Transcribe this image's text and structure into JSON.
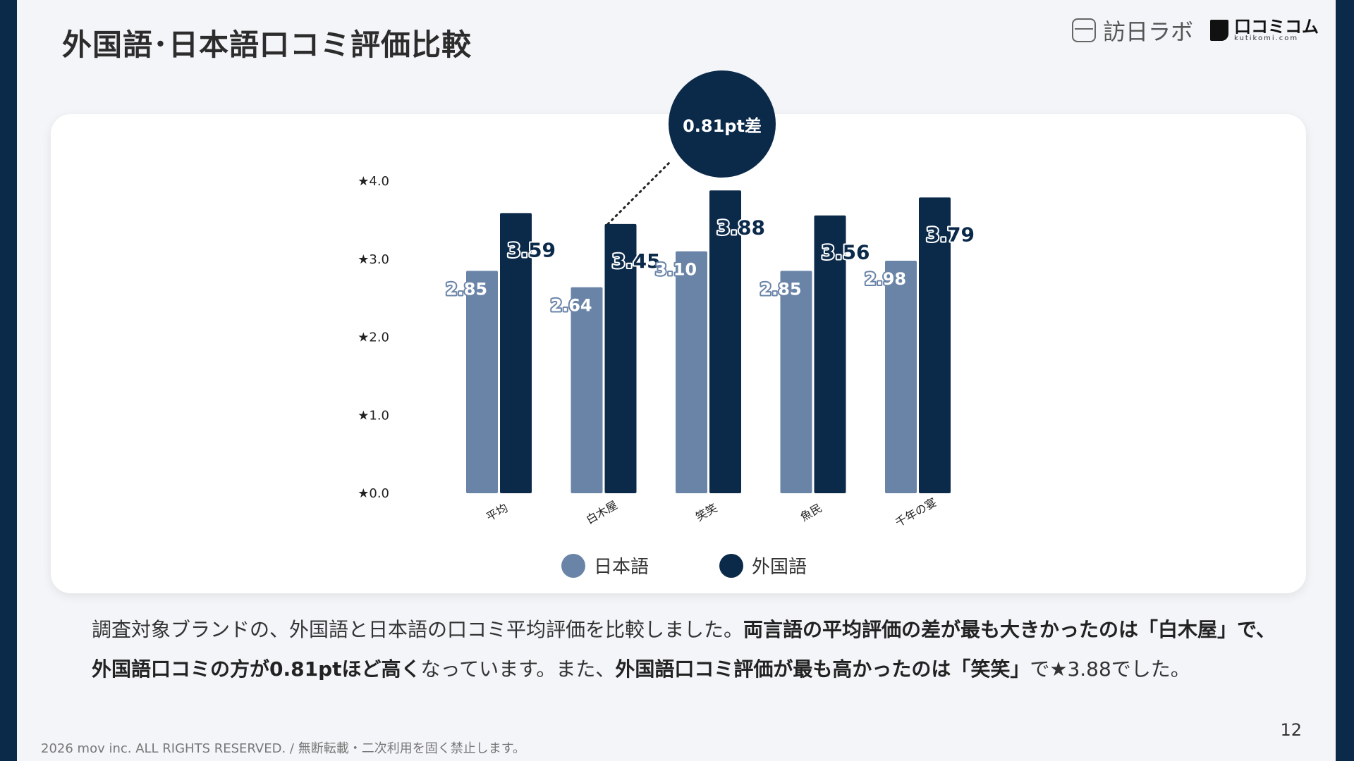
{
  "header": {
    "title": "外国語･日本語口コミ評価比較",
    "logo1_text": "訪日ラボ",
    "logo2_text": "口コミコム",
    "logo2_sub": "kutikomi.com"
  },
  "callout": {
    "text": "0.81pt差",
    "points_to_category": "白木屋"
  },
  "chart_data": {
    "type": "bar",
    "categories": [
      "平均",
      "白木屋",
      "笑笑",
      "魚民",
      "千年の宴"
    ],
    "series": [
      {
        "name": "日本語",
        "color": "#6a84a8",
        "values": [
          2.85,
          2.64,
          3.1,
          2.85,
          2.98
        ],
        "labels": [
          "2.85",
          "2.64",
          "3.10",
          "2.85",
          "2.98"
        ]
      },
      {
        "name": "外国語",
        "color": "#0b2a4a",
        "values": [
          3.59,
          3.45,
          3.88,
          3.56,
          3.79
        ],
        "labels": [
          "3.59",
          "3.45",
          "3.88",
          "3.56",
          "3.79"
        ]
      }
    ],
    "yticks": [
      "★0.0",
      "★1.0",
      "★2.0",
      "★3.0",
      "★4.0"
    ],
    "ylim": [
      0,
      4
    ],
    "grid": false,
    "legend_position": "bottom"
  },
  "description": {
    "p1": "調査対象ブランドの、外国語と日本語の口コミ平均評価を比較しました。",
    "b1": "両言語の平均評価の差が最も大きかったのは「白木屋」で、外国語口コミの方が0.81ptほど高く",
    "p2": "なっています。また、",
    "b2": "外国語口コミ評価が最も高かったのは「笑笑」",
    "p3": "で★3.88でした。"
  },
  "footer": {
    "copyright": "2026 mov inc. ALL RIGHTS RESERVED. / 無断転載・二次利用を固く禁止します。",
    "page": "12"
  }
}
